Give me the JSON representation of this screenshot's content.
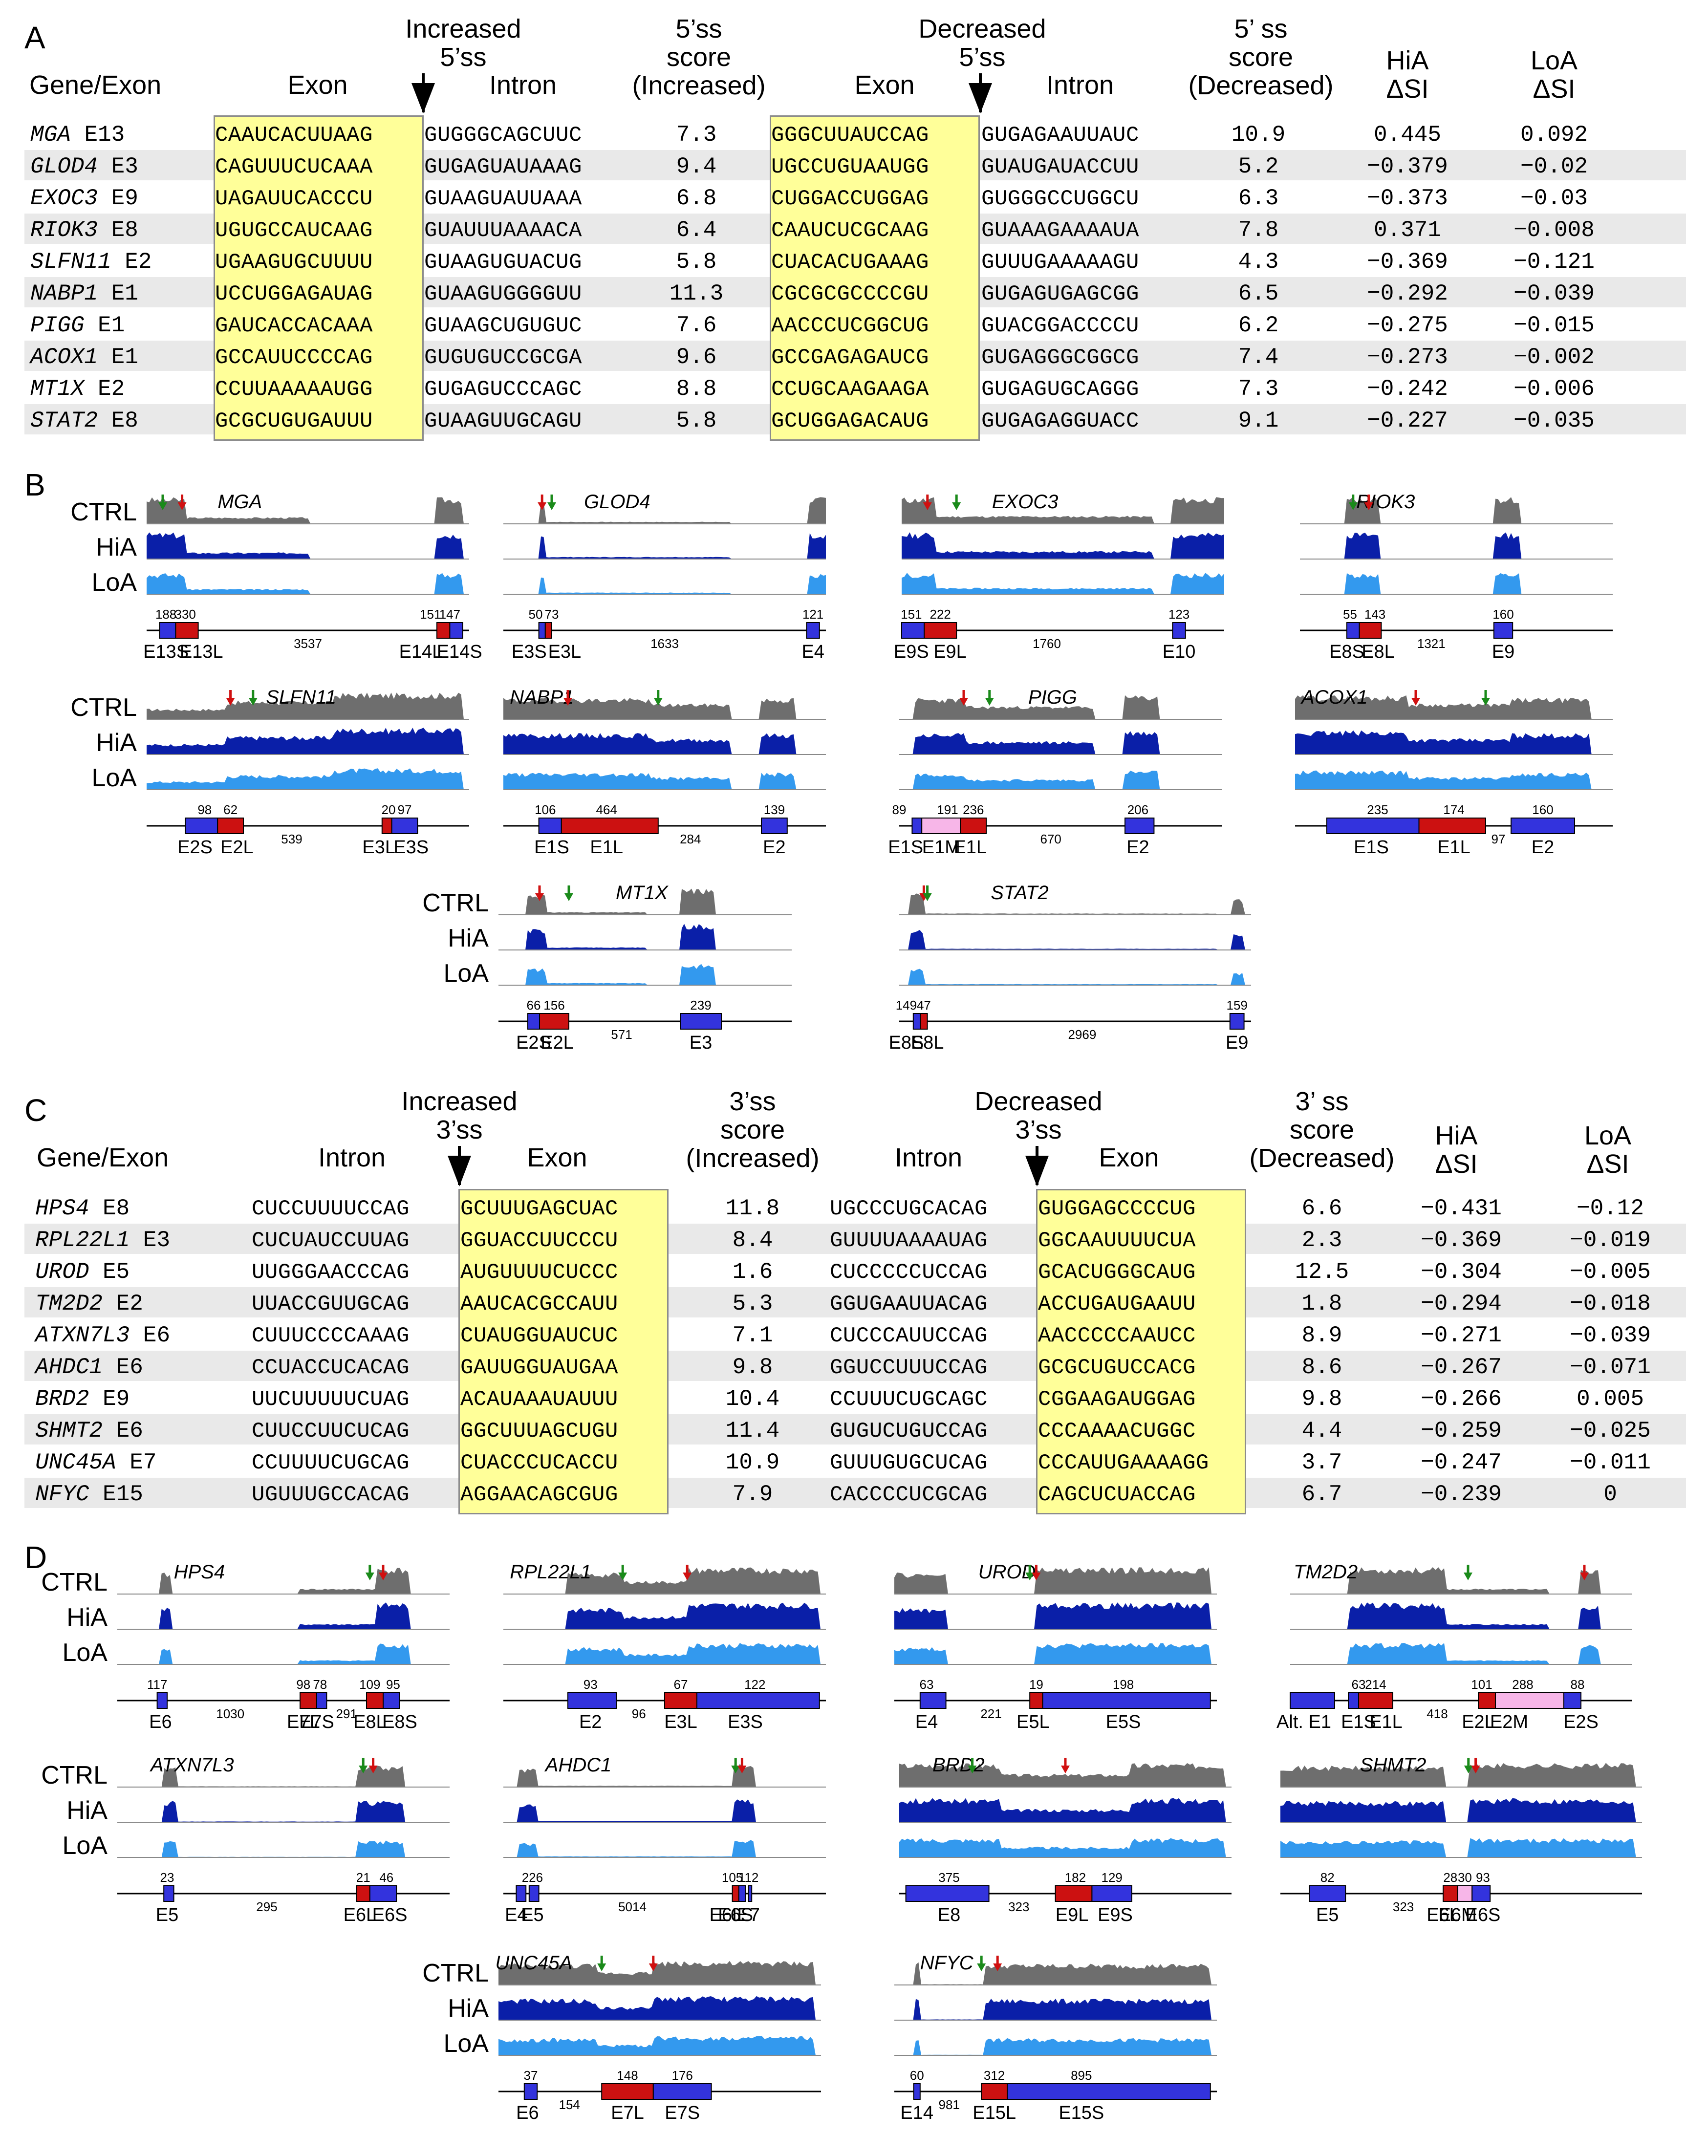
{
  "panels": {
    "a": "A",
    "b": "B",
    "c": "C",
    "d": "D"
  },
  "tableA": {
    "headers": {
      "gene": "Gene/Exon",
      "inc_site": "Increased\n5’ss",
      "exon1": "Exon",
      "intron1": "Intron",
      "score_inc": "5’ss\nscore\n(Increased)",
      "dec_site": "Decreased\n5’ss",
      "exon2": "Exon",
      "intron2": "Intron",
      "score_dec": "5’ ss\nscore\n(Decreased)",
      "hia": "HiA\nΔSI",
      "loa": "LoA\nΔSI"
    },
    "rows": [
      {
        "gene": "MGA",
        "exon": "E13",
        "inc_exon": "CAAUCACUUAAG",
        "inc_intron": "GUGGGCAGCUUC",
        "score_inc": "7.3",
        "dec_exon": "GGGCUUAUCCAG",
        "dec_intron": "GUGAGAAUUAUC",
        "score_dec": "10.9",
        "hia": "0.445",
        "loa": "0.092"
      },
      {
        "gene": "GLOD4",
        "exon": "E3",
        "inc_exon": "CAGUUUCUCAAA",
        "inc_intron": "GUGAGUAUAAAG",
        "score_inc": "9.4",
        "dec_exon": "UGCCUGUAAUGG",
        "dec_intron": "GUAUGAUACCUU",
        "score_dec": "5.2",
        "hia": "−0.379",
        "loa": "−0.02"
      },
      {
        "gene": "EXOC3",
        "exon": "E9",
        "inc_exon": "UAGAUUCACCCU",
        "inc_intron": "GUAAGUAUUAAA",
        "score_inc": "6.8",
        "dec_exon": "CUGGACCUGGAG",
        "dec_intron": "GUGGGCCUGGCU",
        "score_dec": "6.3",
        "hia": "−0.373",
        "loa": "−0.03"
      },
      {
        "gene": "RIOK3",
        "exon": "E8",
        "inc_exon": "UGUGCCAUCAAG",
        "inc_intron": "GUAUUUAAAACA",
        "score_inc": "6.4",
        "dec_exon": "CAAUCUCGCAAG",
        "dec_intron": "GUAAAGAAAAUA",
        "score_dec": "7.8",
        "hia": "0.371",
        "loa": "−0.008"
      },
      {
        "gene": "SLFN11",
        "exon": "E2",
        "inc_exon": "UGAAGUGCUUUU",
        "inc_intron": "GUAAGUGUACUG",
        "score_inc": "5.8",
        "dec_exon": "CUACACUGAAAG",
        "dec_intron": "GUUUGAAAAAGU",
        "score_dec": "4.3",
        "hia": "−0.369",
        "loa": "−0.121"
      },
      {
        "gene": "NABP1",
        "exon": "E1",
        "inc_exon": "UCCUGGAGAUAG",
        "inc_intron": "GUAAGUGGGGUU",
        "score_inc": "11.3",
        "dec_exon": "CGCGCGCCCCGU",
        "dec_intron": "GUGAGUGAGCGG",
        "score_dec": "6.5",
        "hia": "−0.292",
        "loa": "−0.039"
      },
      {
        "gene": "PIGG",
        "exon": "E1",
        "inc_exon": "GAUCACCACAAA",
        "inc_intron": "GUAAGCUGUGUC",
        "score_inc": "7.6",
        "dec_exon": "AACCCUCGGCUG",
        "dec_intron": "GUACGGACCCCU",
        "score_dec": "6.2",
        "hia": "−0.275",
        "loa": "−0.015"
      },
      {
        "gene": "ACOX1",
        "exon": "E1",
        "inc_exon": "GCCAUUCCCCAG",
        "inc_intron": "GUGUGUCCGCGA",
        "score_inc": "9.6",
        "dec_exon": "GCCGAGAGAUCG",
        "dec_intron": "GUGAGGGCGGCG",
        "score_dec": "7.4",
        "hia": "−0.273",
        "loa": "−0.002"
      },
      {
        "gene": "MT1X",
        "exon": "E2",
        "inc_exon": "CCUUAAAAAUGG",
        "inc_intron": "GUGAGUCCCAGC",
        "score_inc": "8.8",
        "dec_exon": "CCUGCAAGAAGA",
        "dec_intron": "GUGAGUGCAGGG",
        "score_dec": "7.3",
        "hia": "−0.242",
        "loa": "−0.006"
      },
      {
        "gene": "STAT2",
        "exon": "E8",
        "inc_exon": "GCGCUGUGAUUU",
        "inc_intron": "GUAAGUUGCAGU",
        "score_inc": "5.8",
        "dec_exon": "GCUGGAGACAUG",
        "dec_intron": "GUGAGAGGUACC",
        "score_dec": "9.1",
        "hia": "−0.227",
        "loa": "−0.035"
      }
    ]
  },
  "tableC": {
    "headers": {
      "gene": "Gene/Exon",
      "intron1": "Intron",
      "inc_site": "Increased\n3’ss",
      "exon1": "Exon",
      "score_inc": "3’ss\nscore\n(Increased)",
      "intron2": "Intron",
      "dec_site": "Decreased\n3’ss",
      "exon2": "Exon",
      "score_dec": "3’ ss\nscore\n(Decreased)",
      "hia": "HiA\nΔSI",
      "loa": "LoA\nΔSI"
    },
    "rows": [
      {
        "gene": "HPS4",
        "exon": "E8",
        "inc_intron": "CUCCUUUUCCAG",
        "inc_exon": "GCUUUGAGCUAC",
        "score_inc": "11.8",
        "dec_intron": "UGCCCUGCACAG",
        "dec_exon": "GUGGAGCCCCUG",
        "score_dec": "6.6",
        "hia": "−0.431",
        "loa": "−0.12"
      },
      {
        "gene": "RPL22L1",
        "exon": "E3",
        "inc_intron": "CUCUAUCCUUAG",
        "inc_exon": "GGUACCUUCCCU",
        "score_inc": "8.4",
        "dec_intron": "GUUUUAAAAUAG",
        "dec_exon": "GGCAAUUUUCUA",
        "score_dec": "2.3",
        "hia": "−0.369",
        "loa": "−0.019"
      },
      {
        "gene": "UROD",
        "exon": "E5",
        "inc_intron": "UUGGGAACCCAG",
        "inc_exon": "AUGUUUUCUCCC",
        "score_inc": "1.6",
        "dec_intron": "CUCCCCCUCCAG",
        "dec_exon": "GCACUGGGCAUG",
        "score_dec": "12.5",
        "hia": "−0.304",
        "loa": "−0.005"
      },
      {
        "gene": "TM2D2",
        "exon": "E2",
        "inc_intron": "UUACCGUUGCAG",
        "inc_exon": "AAUCACGCCAUU",
        "score_inc": "5.3",
        "dec_intron": "GGUGAAUUACAG",
        "dec_exon": "ACCUGAUGAAUU",
        "score_dec": "1.8",
        "hia": "−0.294",
        "loa": "−0.018"
      },
      {
        "gene": "ATXN7L3",
        "exon": "E6",
        "inc_intron": "CUUUCCCCAAAG",
        "inc_exon": "CUAUGGUAUCUC",
        "score_inc": "7.1",
        "dec_intron": "CUCCCAUUCCAG",
        "dec_exon": "AACCCCCAAUCC",
        "score_dec": "8.9",
        "hia": "−0.271",
        "loa": "−0.039"
      },
      {
        "gene": "AHDC1",
        "exon": "E6",
        "inc_intron": "CCUACCUCACAG",
        "inc_exon": "GAUUGGUAUGAA",
        "score_inc": "9.8",
        "dec_intron": "GGUCCUUUCCAG",
        "dec_exon": "GCGCUGUCCACG",
        "score_dec": "8.6",
        "hia": "−0.267",
        "loa": "−0.071"
      },
      {
        "gene": "BRD2",
        "exon": "E9",
        "inc_intron": "UUCUUUUUCUAG",
        "inc_exon": "ACAUAAAUAUUU",
        "score_inc": "10.4",
        "dec_intron": "CCUUUCUGCAGC",
        "dec_exon": "CGGAAGAUGGAG",
        "score_dec": "9.8",
        "hia": "−0.266",
        "loa": "0.005"
      },
      {
        "gene": "SHMT2",
        "exon": "E6",
        "inc_intron": "CUUCCUUCUCAG",
        "inc_exon": "GGCUUUAGCUGU",
        "score_inc": "11.4",
        "dec_intron": "GUGUCUGUCCAG",
        "dec_exon": "CCCAAAACUGGC",
        "score_dec": "4.4",
        "hia": "−0.259",
        "loa": "−0.025"
      },
      {
        "gene": "UNC45A",
        "exon": "E7",
        "inc_intron": "CCUUUUCUGCAG",
        "inc_exon": "CUACCCUCACCU",
        "score_inc": "10.9",
        "dec_intron": "GUUUGUGCUCAG",
        "dec_exon": "CCCAUUGAAAAGG",
        "score_dec": "3.7",
        "hia": "−0.247",
        "loa": "−0.011"
      },
      {
        "gene": "NFYC",
        "exon": "E15",
        "inc_intron": "UGUUUGCCACAG",
        "inc_exon": "AGGAACAGCGUG",
        "score_inc": "7.9",
        "dec_intron": "CACCCCUCGCAG",
        "dec_exon": "CAGCUCUACCAG",
        "score_dec": "6.7",
        "hia": "−0.239",
        "loa": "0"
      }
    ]
  },
  "track_labels": {
    "ctrl": "CTRL",
    "hia": "HiA",
    "loa": "LoA"
  },
  "colors": {
    "ctrl": "#6e6e6e",
    "hia": "#0a1fa8",
    "loa": "#3399ee",
    "exon_blue": "#3333dd",
    "exon_red": "#cc1111",
    "exon_pink": "#f7b6e8",
    "arrow_green": "#1a8a1a",
    "arrow_red": "#d01010",
    "yellow": "#ffff99"
  },
  "panelB": [
    {
      "gene": "MGA",
      "exons": [
        {
          "label": "E13S",
          "len": "188"
        },
        {
          "label": "E13L",
          "len": "330"
        },
        {
          "label": "E14L",
          "len": "151"
        },
        {
          "label": "E14S",
          "len": "147"
        }
      ],
      "intron": "3537"
    },
    {
      "gene": "GLOD4",
      "exons": [
        {
          "label": "E3S",
          "len": "50"
        },
        {
          "label": "E3L",
          "len": "73"
        },
        {
          "label": "E4",
          "len": "121"
        }
      ],
      "intron": "1633"
    },
    {
      "gene": "EXOC3",
      "exons": [
        {
          "label": "E9S",
          "len": "151"
        },
        {
          "label": "E9L",
          "len": "222"
        },
        {
          "label": "E10",
          "len": "123"
        }
      ],
      "intron": "1760"
    },
    {
      "gene": "RIOK3",
      "exons": [
        {
          "label": "E8S",
          "len": "55"
        },
        {
          "label": "E8L",
          "len": "143"
        },
        {
          "label": "E9",
          "len": "160"
        }
      ],
      "intron": "1321"
    },
    {
      "gene": "SLFN11",
      "exons": [
        {
          "label": "E2S",
          "len": "98"
        },
        {
          "label": "E2L",
          "len": "62"
        },
        {
          "label": "E3L",
          "len": "20"
        },
        {
          "label": "E3S",
          "len": "97"
        }
      ],
      "intron": "539"
    },
    {
      "gene": "NABP1",
      "exons": [
        {
          "label": "E1S",
          "len": "106"
        },
        {
          "label": "E1L",
          "len": "464"
        },
        {
          "label": "E2",
          "len": "139"
        }
      ],
      "intron": "284"
    },
    {
      "gene": "PIGG",
      "exons": [
        {
          "label": "E1S",
          "len": "89"
        },
        {
          "label": "E1M",
          "len": "191"
        },
        {
          "label": "E1L",
          "len": "236"
        },
        {
          "label": "E2",
          "len": "206"
        }
      ],
      "intron": "670"
    },
    {
      "gene": "ACOX1",
      "exons": [
        {
          "label": "E1S",
          "len": "235"
        },
        {
          "label": "E1L",
          "len": "174"
        },
        {
          "label": "E2",
          "len": "160"
        }
      ],
      "intron": "97"
    },
    {
      "gene": "MT1X",
      "exons": [
        {
          "label": "E2S",
          "len": "66"
        },
        {
          "label": "E2L",
          "len": "156"
        },
        {
          "label": "E3",
          "len": "239"
        }
      ],
      "intron": "571"
    },
    {
      "gene": "STAT2",
      "exons": [
        {
          "label": "E8S",
          "len": "149"
        },
        {
          "label": "E8L",
          "len": "47"
        },
        {
          "label": "E9",
          "len": "159"
        }
      ],
      "intron": "2969"
    }
  ],
  "panelD": [
    {
      "gene": "HPS4",
      "exons": [
        {
          "label": "E6",
          "len": "117"
        },
        {
          "label": "E7L",
          "len": "98"
        },
        {
          "label": "E7S",
          "len": "78"
        },
        {
          "label": "E8L",
          "len": "109"
        },
        {
          "label": "E8S",
          "len": "95"
        }
      ],
      "introns": [
        "1030",
        "291"
      ]
    },
    {
      "gene": "RPL22L1",
      "exons": [
        {
          "label": "E2",
          "len": "93"
        },
        {
          "label": "E3L",
          "len": "67"
        },
        {
          "label": "E3S",
          "len": "122"
        }
      ],
      "introns": [
        "96"
      ]
    },
    {
      "gene": "UROD",
      "exons": [
        {
          "label": "E4",
          "len": "63"
        },
        {
          "label": "E5L",
          "len": "19"
        },
        {
          "label": "E5S",
          "len": "198"
        }
      ],
      "introns": [
        "221"
      ]
    },
    {
      "gene": "TM2D2",
      "exons": [
        {
          "label": "Alt. E1",
          "len": ""
        },
        {
          "label": "E1S",
          "len": "63"
        },
        {
          "label": "E1L",
          "len": "214"
        },
        {
          "label": "E2L",
          "len": "101"
        },
        {
          "label": "E2M",
          "len": "288"
        },
        {
          "label": "E2S",
          "len": "88"
        }
      ],
      "introns": [
        "418"
      ]
    },
    {
      "gene": "ATXN7L3",
      "exons": [
        {
          "label": "E5",
          "len": "23"
        },
        {
          "label": "E6L",
          "len": "21"
        },
        {
          "label": "E6S",
          "len": "46"
        }
      ],
      "introns": [
        "295"
      ]
    },
    {
      "gene": "AHDC1",
      "exons": [
        {
          "label": "E4",
          "len": ""
        },
        {
          "label": "E5",
          "len": "226"
        },
        {
          "label": "E6L",
          "len": "105"
        },
        {
          "label": "E6S",
          "len": ""
        },
        {
          "label": "E7",
          "len": "112"
        }
      ],
      "introns": [
        "5014"
      ]
    },
    {
      "gene": "BRD2",
      "exons": [
        {
          "label": "E8",
          "len": "375"
        },
        {
          "label": "E9L",
          "len": "182"
        },
        {
          "label": "E9S",
          "len": "129"
        }
      ],
      "introns": [
        "323"
      ]
    },
    {
      "gene": "SHMT2",
      "exons": [
        {
          "label": "E5",
          "len": "82"
        },
        {
          "label": "E6L",
          "len": "28"
        },
        {
          "label": "E6M",
          "len": "30"
        },
        {
          "label": "E6S",
          "len": "93"
        }
      ],
      "introns": [
        "323"
      ]
    },
    {
      "gene": "UNC45A",
      "exons": [
        {
          "label": "E6",
          "len": "37"
        },
        {
          "label": "E7L",
          "len": "148"
        },
        {
          "label": "E7S",
          "len": "176"
        }
      ],
      "introns": [
        "154"
      ]
    },
    {
      "gene": "NFYC",
      "exons": [
        {
          "label": "E14",
          "len": "60"
        },
        {
          "label": "E15L",
          "len": "312"
        },
        {
          "label": "E15S",
          "len": "895"
        }
      ],
      "introns": [
        "981"
      ]
    }
  ]
}
